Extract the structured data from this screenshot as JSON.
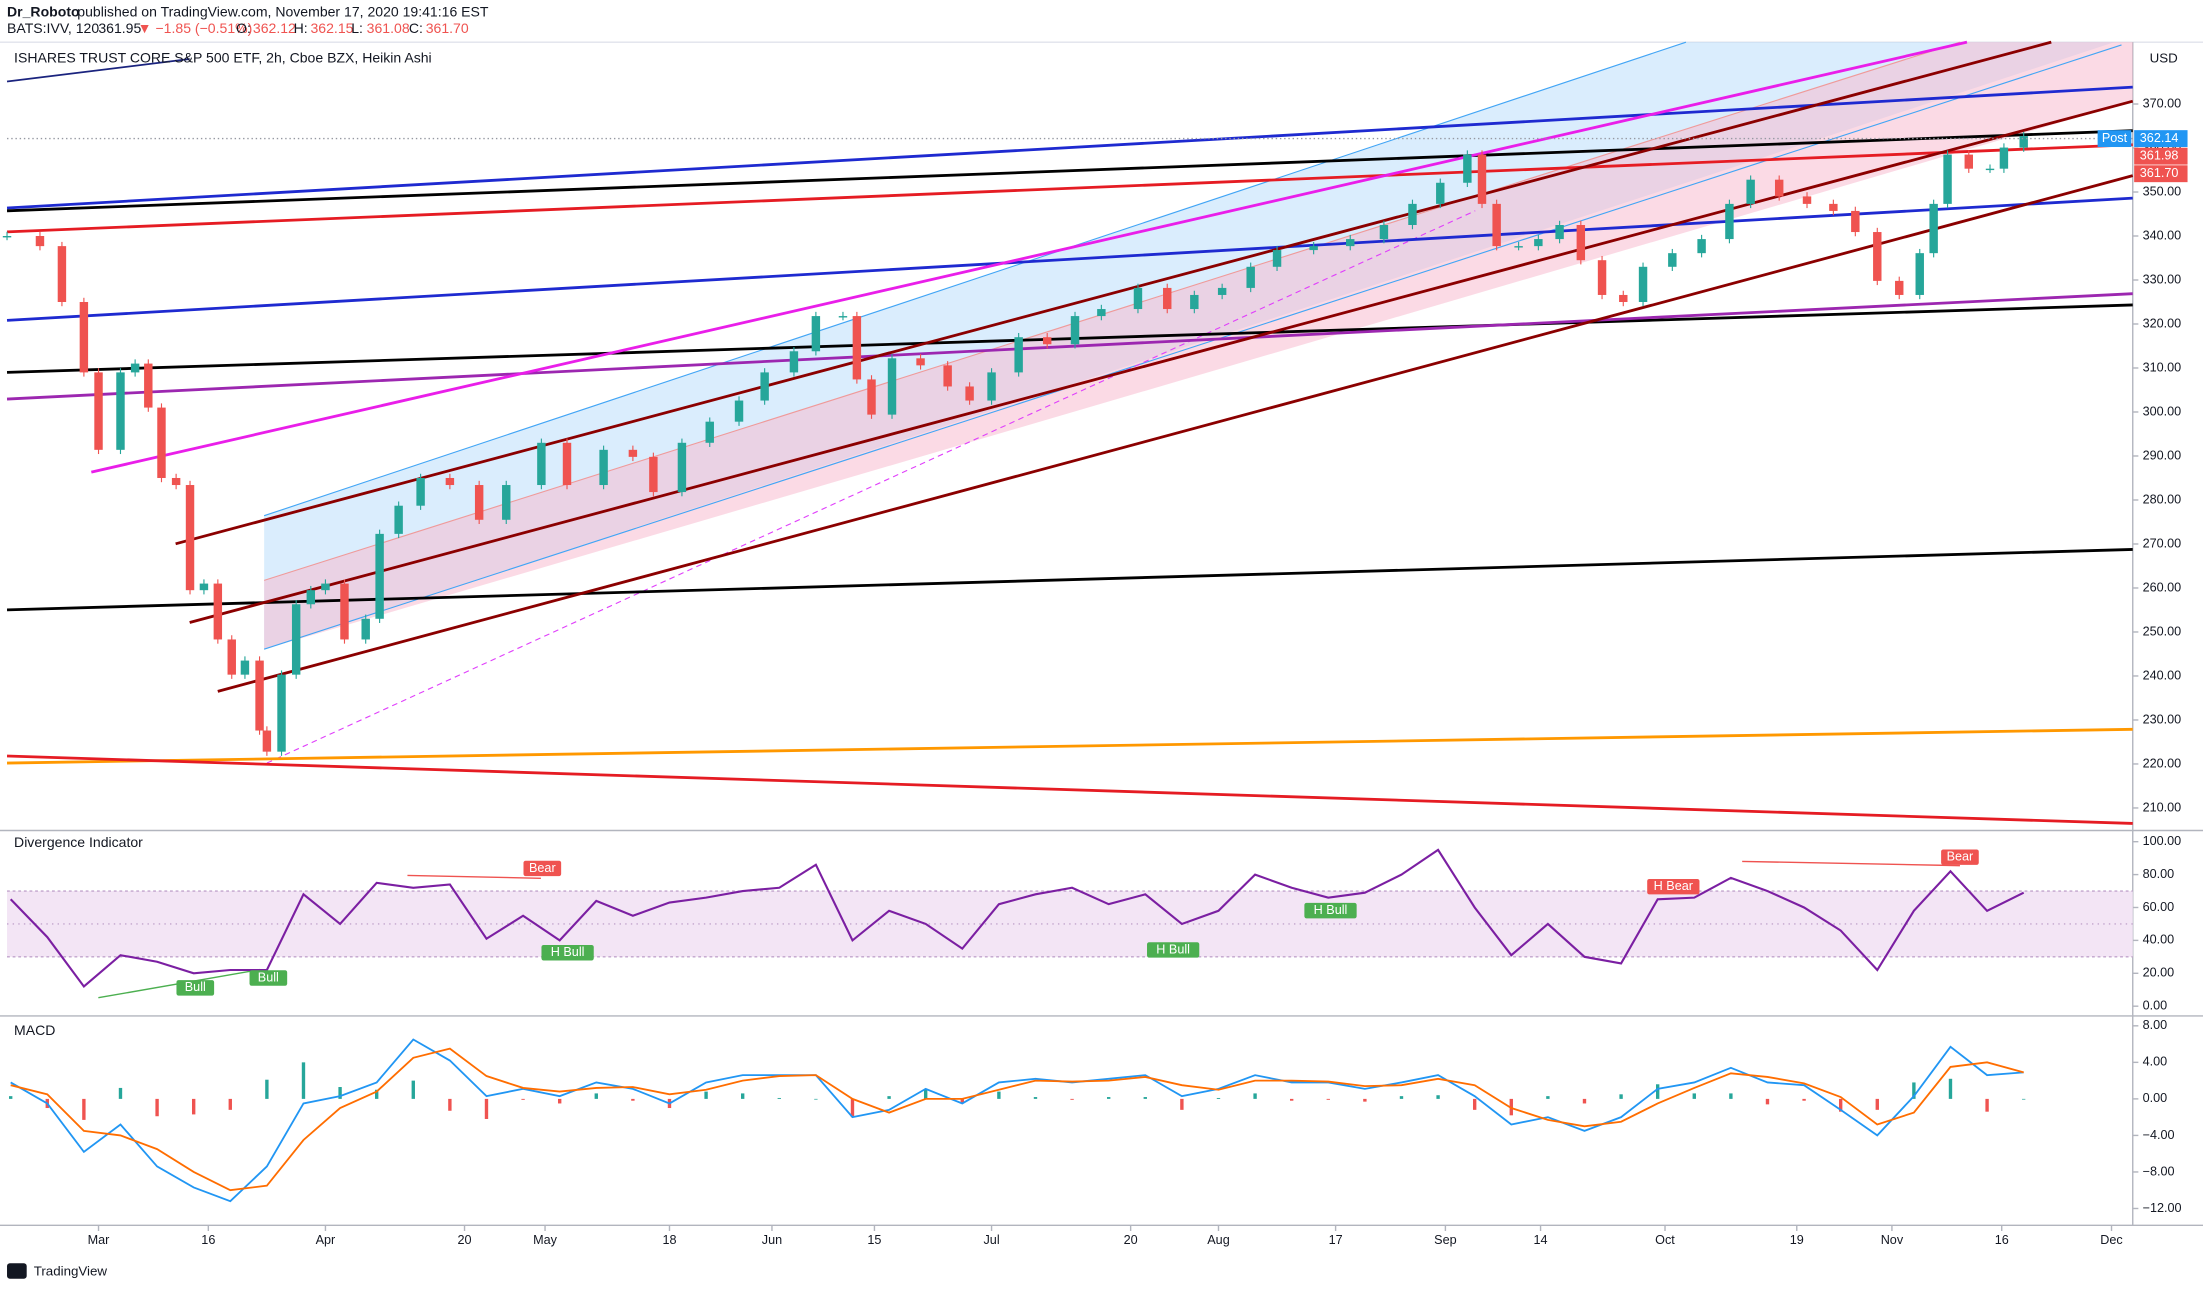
{
  "header": {
    "author": "Dr_Roboto",
    "published": "published on TradingView.com, November 17, 2020 19:41:16 EST",
    "symbol": "BATS:IVV, 120",
    "last": "361.95",
    "change": "▼ −1.85 (−0.51%)",
    "o_label": "O:",
    "o": "362.12",
    "h_label": "H:",
    "h": "362.15",
    "l_label": "L:",
    "l": "361.08",
    "c_label": "C:",
    "c": "361.70",
    "currency": "USD",
    "post_label": "Post",
    "logo": "TradingView"
  },
  "chart_data": [
    {
      "type": "candlestick",
      "title": "ISHARES TRUST CORE S&P 500 ETF, 2h, Cboe BZX, Heikin Ashi",
      "color_up": "#26a69a",
      "color_down": "#ef5350",
      "x": [
        48.5,
        53,
        56,
        59,
        61,
        64,
        66,
        67.8,
        69.6,
        71.6,
        73.5,
        75.4,
        77.3,
        79.2,
        81,
        83,
        84,
        86,
        88,
        90,
        92,
        94.6,
        97.5,
        99.4,
        102,
        105,
        109,
        113,
        116.7,
        121.5,
        125,
        130,
        134,
        136.8,
        140.7,
        144.5,
        148.5,
        152,
        156,
        159,
        162.7,
        164.6,
        166.6,
        169.4,
        173.3,
        177,
        180,
        183,
        186.7,
        190.6,
        194.4,
        198,
        203,
        207,
        210.7,
        214.5,
        218.4,
        222,
        227,
        232,
        236.6,
        240.5,
        244.3,
        248,
        250,
        252,
        255,
        257.7,
        260.6,
        263.5,
        266.4,
        269.3,
        272,
        276,
        280,
        283.8,
        286.7,
        290.6,
        294.4,
        298,
        301,
        304,
        307,
        309.8,
        311.7,
        313.6,
        316.5,
        319.4,
        321.3,
        324
      ],
      "values": [
        340,
        337.7,
        325,
        309,
        291.4,
        309,
        311,
        301,
        285,
        283.4,
        259.5,
        261,
        248.3,
        240.3,
        243.5,
        227.6,
        222.8,
        240.3,
        256.3,
        259.5,
        261,
        248.3,
        253,
        272.3,
        278.7,
        285,
        283.4,
        275.5,
        283.4,
        293,
        283.4,
        291.4,
        289.8,
        281.8,
        293,
        297.8,
        302.6,
        309,
        313.8,
        321.8,
        321.8,
        307.4,
        299.4,
        312.2,
        310.6,
        305.8,
        302.6,
        309,
        317,
        315.4,
        321.8,
        323.4,
        328.2,
        323.4,
        326.6,
        328.2,
        333,
        336.8,
        337.7,
        339.3,
        342.5,
        347.3,
        352.1,
        358.5,
        347.3,
        337.7,
        337.7,
        339.3,
        342.5,
        334.5,
        326.6,
        325,
        333,
        336.1,
        339.3,
        347.3,
        352.8,
        349,
        347.3,
        345.7,
        340.9,
        329.8,
        326.6,
        336.1,
        347.3,
        358.5,
        355.3,
        355.3,
        360.1,
        362.7
      ],
      "xlim": [
        48.5,
        338.9
      ],
      "xticks": [
        {
          "value": 61,
          "label": "Mar"
        },
        {
          "value": 76,
          "label": "16"
        },
        {
          "value": 92,
          "label": "Apr"
        },
        {
          "value": 111,
          "label": "20"
        },
        {
          "value": 122,
          "label": "May"
        },
        {
          "value": 139,
          "label": "18"
        },
        {
          "value": 153,
          "label": "Jun"
        },
        {
          "value": 167,
          "label": "15"
        },
        {
          "value": 183,
          "label": "Jul"
        },
        {
          "value": 202,
          "label": "20"
        },
        {
          "value": 214,
          "label": "Aug"
        },
        {
          "value": 230,
          "label": "17"
        },
        {
          "value": 245,
          "label": "Sep"
        },
        {
          "value": 258,
          "label": "14"
        },
        {
          "value": 275,
          "label": "Oct"
        },
        {
          "value": 293,
          "label": "19"
        },
        {
          "value": 306,
          "label": "Nov"
        },
        {
          "value": 321,
          "label": "16"
        },
        {
          "value": 336,
          "label": "Dec"
        }
      ],
      "ylim": [
        205.2,
        383.1
      ],
      "yticks": [
        {
          "value": 210,
          "label": "210.00"
        },
        {
          "value": 220,
          "label": "220.00"
        },
        {
          "value": 230,
          "label": "230.00"
        },
        {
          "value": 240,
          "label": "240.00"
        },
        {
          "value": 250,
          "label": "250.00"
        },
        {
          "value": 260,
          "label": "260.00"
        },
        {
          "value": 270,
          "label": "270.00"
        },
        {
          "value": 280,
          "label": "280.00"
        },
        {
          "value": 290,
          "label": "290.00"
        },
        {
          "value": 300,
          "label": "300.00"
        },
        {
          "value": 310,
          "label": "310.00"
        },
        {
          "value": 320,
          "label": "320.00"
        },
        {
          "value": 330,
          "label": "330.00"
        },
        {
          "value": 340,
          "label": "340.00"
        },
        {
          "value": 350,
          "label": "350.00"
        },
        {
          "value": 360,
          "label": "360.00"
        },
        {
          "value": 370,
          "label": "370.00"
        }
      ],
      "price_tags": [
        362.14,
        361.98,
        {
          "value": 361.7,
          "label": "361.70"
        }
      ],
      "price_tag_colors": [
        "#2196f3",
        "#ef5350",
        "#ef5350"
      ]
    },
    {
      "type": "line",
      "title": "Divergence Indicator",
      "color": "#7b1fa2",
      "x": [
        49,
        54,
        59,
        64,
        69,
        74,
        79,
        84,
        89,
        94,
        99,
        104,
        109,
        114,
        119,
        124,
        129,
        134,
        139,
        144,
        149,
        154,
        159,
        164,
        169,
        174,
        179,
        184,
        189,
        194,
        199,
        204,
        209,
        214,
        219,
        224,
        229,
        234,
        239,
        244,
        249,
        254,
        259,
        264,
        269,
        274,
        279,
        284,
        289,
        294,
        299,
        304,
        309,
        314,
        319,
        324
      ],
      "values": [
        65,
        42,
        12,
        31,
        27,
        20,
        22,
        22,
        68,
        50,
        75,
        72,
        74,
        41,
        55,
        40,
        64,
        55,
        63,
        66,
        70,
        72,
        86,
        40,
        58,
        50,
        35,
        62,
        68,
        72,
        62,
        68,
        50,
        58,
        80,
        72,
        66,
        69,
        80,
        95,
        60,
        31,
        50,
        30,
        26,
        65,
        66,
        78,
        70,
        60,
        46,
        22,
        58,
        82,
        58,
        69
      ],
      "xlim": [
        48.5,
        338.9
      ],
      "ylim": [
        -5.1,
        105.1
      ],
      "yticks": [
        {
          "value": 0,
          "label": "0.00"
        },
        {
          "value": 20,
          "label": "20.00"
        },
        {
          "value": 40,
          "label": "40.00"
        },
        {
          "value": 60,
          "label": "60.00"
        },
        {
          "value": 80,
          "label": "80.00"
        },
        {
          "value": 100,
          "label": "100.00"
        }
      ],
      "band": [
        30,
        70
      ],
      "midline": 50,
      "annotations": [
        "Bear",
        "Bull",
        "Bull",
        "H Bull",
        "H Bull",
        "H Bull",
        "H Bear",
        "Bear"
      ]
    },
    {
      "type": "macd",
      "title": "MACD",
      "x": [
        49,
        54,
        59,
        64,
        69,
        74,
        79,
        84,
        89,
        94,
        99,
        104,
        109,
        114,
        119,
        124,
        129,
        134,
        139,
        144,
        149,
        154,
        159,
        164,
        169,
        174,
        179,
        184,
        189,
        194,
        199,
        204,
        209,
        214,
        219,
        224,
        229,
        234,
        239,
        244,
        249,
        254,
        259,
        264,
        269,
        274,
        279,
        284,
        289,
        294,
        299,
        304,
        309,
        314,
        319,
        324
      ],
      "series": [
        {
          "style": "histogram",
          "color_up": "#26a69a",
          "color_down": "#ef5350",
          "values": [
            0.3,
            -1.0,
            -2.3,
            1.2,
            -1.9,
            -1.7,
            -1.2,
            2.1,
            4.0,
            1.3,
            1.0,
            2.0,
            -1.3,
            -2.2,
            -0.1,
            -0.5,
            0.6,
            -0.2,
            -1.0,
            0.8,
            0.6,
            0.1,
            0.0,
            -2.0,
            0.3,
            1.1,
            -0.5,
            0.8,
            0.2,
            -0.1,
            0.2,
            0.2,
            -1.2,
            0.1,
            0.6,
            -0.2,
            -0.1,
            -0.3,
            0.3,
            0.4,
            -1.2,
            -1.8,
            0.3,
            -0.5,
            0.5,
            1.6,
            0.6,
            0.6,
            -0.6,
            -0.2,
            -1.4,
            -1.2,
            1.8,
            2.2,
            -1.4,
            0.0
          ]
        },
        {
          "style": "line",
          "color": "#2196f3",
          "values": [
            1.8,
            -0.5,
            -5.8,
            -2.8,
            -7.4,
            -9.7,
            -11.2,
            -7.4,
            -0.5,
            0.3,
            1.8,
            6.5,
            4.2,
            0.3,
            1.1,
            0.3,
            1.8,
            1.1,
            -0.5,
            1.8,
            2.6,
            2.6,
            2.6,
            -2.0,
            -1.2,
            1.1,
            -0.5,
            1.8,
            2.2,
            1.8,
            2.2,
            2.6,
            0.3,
            1.1,
            2.6,
            1.8,
            1.8,
            1.1,
            1.8,
            2.6,
            0.3,
            -2.8,
            -2.0,
            -3.5,
            -2.0,
            1.1,
            1.8,
            3.4,
            1.8,
            1.5,
            -1.2,
            -4.0,
            0.3,
            5.7,
            2.6,
            2.9
          ]
        },
        {
          "style": "line",
          "color": "#ff6d00",
          "values": [
            1.5,
            0.5,
            -3.5,
            -4.0,
            -5.5,
            -8.0,
            -10.0,
            -9.5,
            -4.5,
            -1.0,
            0.8,
            4.5,
            5.5,
            2.5,
            1.2,
            0.8,
            1.2,
            1.3,
            0.5,
            1.0,
            2.0,
            2.5,
            2.6,
            0.0,
            -1.5,
            0.0,
            0.0,
            1.0,
            2.0,
            1.9,
            2.0,
            2.4,
            1.5,
            1.0,
            2.0,
            2.0,
            1.9,
            1.4,
            1.5,
            2.2,
            1.5,
            -1.0,
            -2.3,
            -3.0,
            -2.5,
            -0.5,
            1.2,
            2.8,
            2.4,
            1.7,
            0.2,
            -2.8,
            -1.5,
            3.5,
            4.0,
            2.9
          ]
        }
      ],
      "xlim": [
        48.5,
        338.9
      ],
      "ylim": [
        -13.54,
        8.77
      ],
      "yticks": [
        {
          "value": -12,
          "label": "−12.00"
        },
        {
          "value": -8,
          "label": "−8.00"
        },
        {
          "value": -4,
          "label": "−4.00"
        },
        {
          "value": 0,
          "label": "0.00"
        },
        {
          "value": 4,
          "label": "4.00"
        },
        {
          "value": 8,
          "label": "8.00"
        }
      ]
    }
  ]
}
